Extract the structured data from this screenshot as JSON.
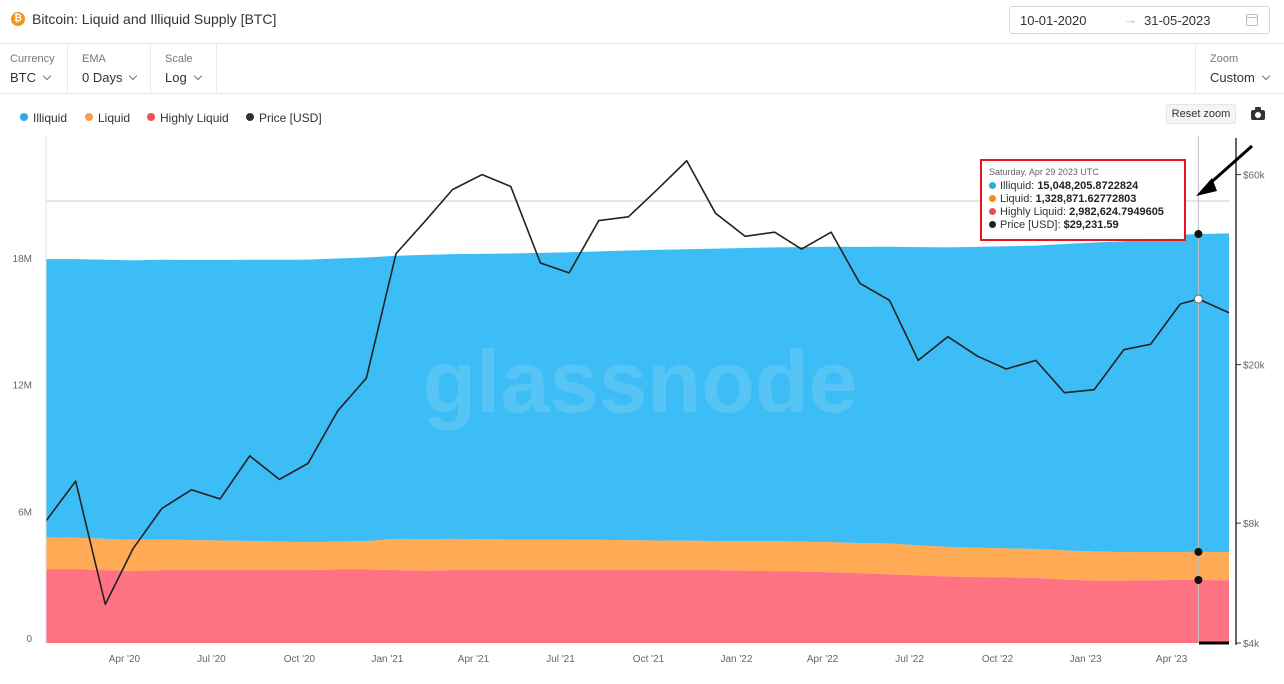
{
  "header": {
    "coin_icon": "bitcoin-icon",
    "title": "Bitcoin: Liquid and Illiquid Supply [BTC]",
    "date_from": "10-01-2020",
    "date_arrow": "→",
    "date_to": "31-05-2023",
    "calendar_icon": "calendar-icon"
  },
  "controls": {
    "currency": {
      "label": "Currency",
      "value": "BTC"
    },
    "ema": {
      "label": "EMA",
      "value": "0 Days"
    },
    "scale": {
      "label": "Scale",
      "value": "Log"
    },
    "zoom": {
      "label": "Zoom",
      "value": "Custom"
    }
  },
  "toolbar": {
    "reset_zoom": "Reset zoom",
    "camera_icon": "camera-icon"
  },
  "watermark": "glassnode",
  "tooltip": {
    "date": "Saturday, Apr 29 2023 UTC",
    "rows": [
      {
        "label": "Illiquid:",
        "value": "15,048,205.8722824",
        "color": "#2fa8e6"
      },
      {
        "label": "Liquid:",
        "value": "1,328,871.62772803",
        "color": "#f58a1f"
      },
      {
        "label": "Highly Liquid:",
        "value": "2,982,624.7949605",
        "color": "#ee4c5a"
      },
      {
        "label": "Price [USD]:",
        "value": "$29,231.59",
        "color": "#222222"
      }
    ]
  },
  "chart_data": {
    "type": "area",
    "title": "Bitcoin: Liquid and Illiquid Supply [BTC]",
    "x_start": "2020-01-10",
    "x_end": "2023-05-31",
    "x_ticks": [
      "Apr '20",
      "Jul '20",
      "Oct '20",
      "Jan '21",
      "Apr '21",
      "Jul '21",
      "Oct '21",
      "Jan '22",
      "Apr '22",
      "Jul '22",
      "Oct '22",
      "Jan '23",
      "Apr '23"
    ],
    "y_left": {
      "ticks": [
        "0",
        "6M",
        "12M",
        "18M"
      ],
      "range": [
        0,
        24000000
      ]
    },
    "y_right": {
      "scale": "log",
      "ticks": [
        "$4k",
        "$8k",
        "$20k",
        "$60k"
      ],
      "range": [
        4000,
        75000
      ]
    },
    "legend": [
      "Illiquid",
      "Liquid",
      "Highly Liquid",
      "Price [USD]"
    ],
    "colors": {
      "illiquid": "#3dbdf5",
      "liquid": "#ffaa55",
      "highly_liquid": "#ff7282",
      "price": "#222222"
    },
    "dates": [
      "2020-01-10",
      "2020-02-10",
      "2020-03-12",
      "2020-04-10",
      "2020-05-10",
      "2020-06-10",
      "2020-07-10",
      "2020-08-10",
      "2020-09-10",
      "2020-10-10",
      "2020-11-10",
      "2020-12-10",
      "2021-01-10",
      "2021-02-10",
      "2021-03-10",
      "2021-04-10",
      "2021-05-10",
      "2021-06-10",
      "2021-07-10",
      "2021-08-10",
      "2021-09-10",
      "2021-10-10",
      "2021-11-10",
      "2021-12-10",
      "2022-01-10",
      "2022-02-10",
      "2022-03-10",
      "2022-04-10",
      "2022-05-10",
      "2022-06-10",
      "2022-07-10",
      "2022-08-10",
      "2022-09-10",
      "2022-10-10",
      "2022-11-10",
      "2022-12-10",
      "2023-01-10",
      "2023-02-10",
      "2023-03-10",
      "2023-04-10",
      "2023-04-29",
      "2023-05-31"
    ],
    "series": [
      {
        "name": "Highly Liquid",
        "values": [
          3500000,
          3500000,
          3450000,
          3400000,
          3450000,
          3450000,
          3450000,
          3450000,
          3450000,
          3450000,
          3480000,
          3480000,
          3450000,
          3420000,
          3450000,
          3450000,
          3450000,
          3450000,
          3450000,
          3450000,
          3450000,
          3450000,
          3450000,
          3450000,
          3420000,
          3400000,
          3380000,
          3350000,
          3300000,
          3250000,
          3200000,
          3150000,
          3120000,
          3100000,
          3080000,
          3000000,
          2950000,
          2950000,
          2970000,
          2980000,
          2982625,
          2970000
        ]
      },
      {
        "name": "Liquid",
        "values": [
          1500000,
          1480000,
          1480000,
          1480000,
          1450000,
          1420000,
          1400000,
          1380000,
          1350000,
          1320000,
          1320000,
          1340000,
          1480000,
          1500000,
          1480000,
          1460000,
          1450000,
          1440000,
          1430000,
          1430000,
          1420000,
          1400000,
          1390000,
          1380000,
          1400000,
          1420000,
          1410000,
          1420000,
          1430000,
          1460000,
          1420000,
          1400000,
          1390000,
          1380000,
          1370000,
          1380000,
          1380000,
          1350000,
          1340000,
          1330000,
          1328872,
          1330000
        ]
      },
      {
        "name": "Illiquid",
        "values": [
          13170000,
          13190000,
          13210000,
          13230000,
          13240000,
          13260000,
          13280000,
          13310000,
          13340000,
          13380000,
          13400000,
          13430000,
          13400000,
          13450000,
          13480000,
          13510000,
          13540000,
          13580000,
          13620000,
          13660000,
          13710000,
          13760000,
          13800000,
          13840000,
          13880000,
          13910000,
          13950000,
          13990000,
          14020000,
          14050000,
          14120000,
          14180000,
          14240000,
          14300000,
          14360000,
          14510000,
          14630000,
          14720000,
          14860000,
          15010000,
          15048206,
          15090000
        ]
      },
      {
        "name": "Price [USD]",
        "values": [
          8100,
          10200,
          5000,
          6900,
          8700,
          9700,
          9200,
          11800,
          10300,
          11300,
          15300,
          18500,
          38000,
          46000,
          55000,
          60000,
          56000,
          36000,
          34000,
          46000,
          47000,
          55000,
          65000,
          48000,
          42000,
          43000,
          39000,
          43000,
          32000,
          29000,
          20500,
          23500,
          21000,
          19500,
          20500,
          17000,
          17300,
          21800,
          22500,
          28400,
          29232,
          27000
        ]
      }
    ]
  }
}
